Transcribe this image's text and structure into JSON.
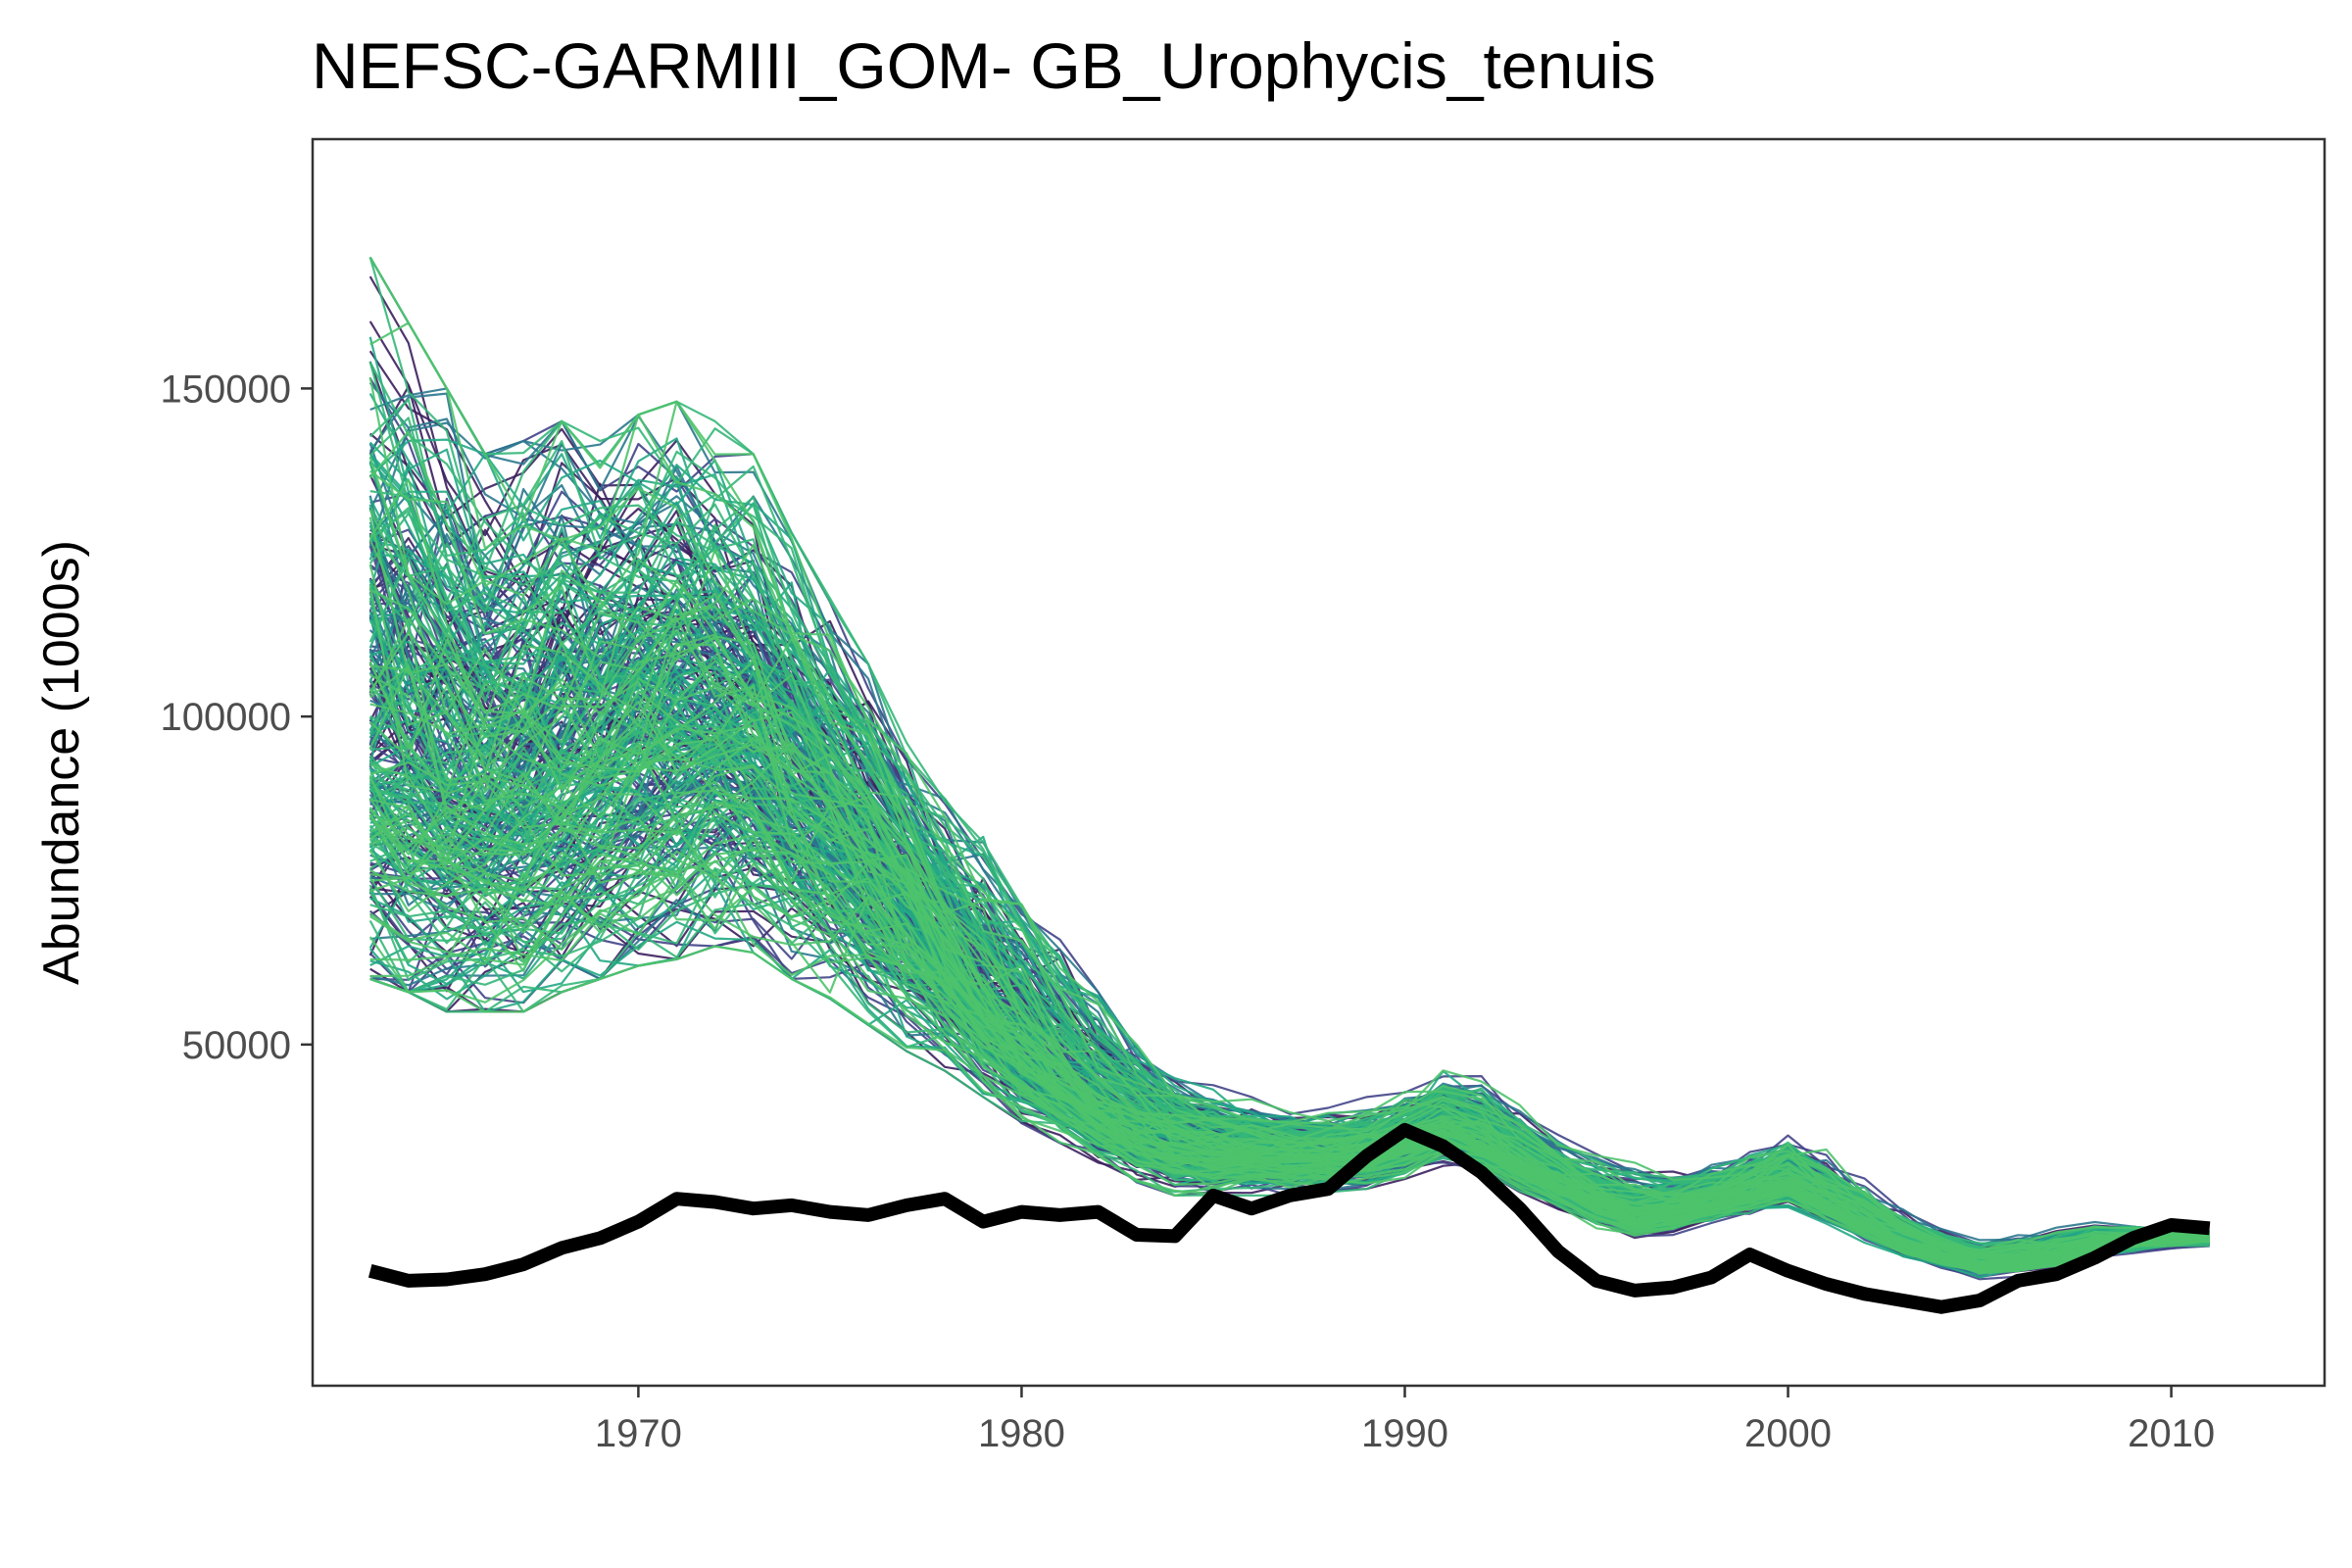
{
  "chart_data": {
    "type": "line",
    "title": "NEFSC-GARMIII_GOM- GB_Urophycis_tenuis",
    "xlabel": "",
    "ylabel": "Abundance (1000s)",
    "xlim": [
      1961.5,
      2014.0
    ],
    "ylim": [
      -2000,
      188000
    ],
    "x_ticks": [
      1970,
      1980,
      1990,
      2000,
      2010
    ],
    "x_tick_labels": [
      "1970",
      "1980",
      "1990",
      "2000",
      "2010"
    ],
    "y_ticks": [
      50000,
      100000,
      150000
    ],
    "y_tick_labels": [
      "50000",
      "100000",
      "150000"
    ],
    "grid": false,
    "legend": "none",
    "x": [
      1963,
      1964,
      1965,
      1966,
      1967,
      1968,
      1969,
      1970,
      1971,
      1972,
      1973,
      1974,
      1975,
      1976,
      1977,
      1978,
      1979,
      1980,
      1981,
      1982,
      1983,
      1984,
      1985,
      1986,
      1987,
      1988,
      1989,
      1990,
      1991,
      1992,
      1993,
      1994,
      1995,
      1996,
      1997,
      1998,
      1999,
      2000,
      2001,
      2002,
      2003,
      2004,
      2005,
      2006,
      2007,
      2008,
      2009,
      2010,
      2011
    ],
    "simulated": {
      "description_hidden": "",
      "n_runs": 300,
      "median": [
        95000,
        93000,
        90000,
        88000,
        90000,
        93000,
        96000,
        98000,
        99000,
        99000,
        96000,
        90000,
        84000,
        78000,
        71000,
        63000,
        55000,
        49000,
        44000,
        40000,
        37000,
        35000,
        34000,
        33500,
        33000,
        33000,
        33500,
        35000,
        37000,
        35000,
        32000,
        29000,
        26000,
        24000,
        24500,
        26000,
        27500,
        29000,
        26000,
        23000,
        20000,
        18000,
        16500,
        17000,
        18000,
        19500,
        20000,
        20500,
        20500
      ],
      "upper": [
        170000,
        160000,
        150000,
        140000,
        142000,
        145000,
        142000,
        146000,
        148000,
        145000,
        140000,
        128000,
        118000,
        108000,
        96000,
        88000,
        82000,
        74000,
        66000,
        58000,
        52000,
        46000,
        44000,
        42000,
        41000,
        41000,
        42000,
        44000,
        48000,
        46000,
        41000,
        37000,
        34000,
        32000,
        31000,
        33000,
        35000,
        38000,
        34000,
        30000,
        26000,
        23000,
        21000,
        22000,
        23000,
        24000,
        24000,
        23000,
        22000
      ],
      "lower": [
        60000,
        58000,
        55000,
        55000,
        55000,
        58000,
        60000,
        62000,
        63000,
        65000,
        64000,
        60000,
        57000,
        53000,
        49000,
        46000,
        42000,
        38000,
        35000,
        32000,
        29000,
        27000,
        27000,
        27000,
        27000,
        27500,
        28000,
        29500,
        31500,
        30000,
        27000,
        24500,
        22000,
        20000,
        20500,
        22000,
        23500,
        24500,
        22000,
        19500,
        17000,
        15500,
        14000,
        14500,
        15500,
        17000,
        18000,
        18500,
        19000
      ],
      "colors": [
        "#3b1f5e",
        "#414487",
        "#2a788e",
        "#22a884",
        "#35b779",
        "#4ec36b"
      ]
    },
    "series": [
      {
        "name": "",
        "color": "#000000",
        "values": [
          15500,
          14000,
          14200,
          15000,
          16500,
          19000,
          20500,
          23000,
          26500,
          26000,
          25000,
          25500,
          24500,
          24000,
          25500,
          26500,
          23000,
          24500,
          24000,
          24500,
          21000,
          20800,
          27000,
          25000,
          27000,
          28000,
          33000,
          37000,
          34500,
          30500,
          25000,
          18500,
          14000,
          12500,
          13000,
          14500,
          18000,
          15500,
          13500,
          12000,
          11000,
          10000,
          11000,
          14000,
          15000,
          17500,
          20500,
          22500,
          22000
        ]
      }
    ]
  }
}
